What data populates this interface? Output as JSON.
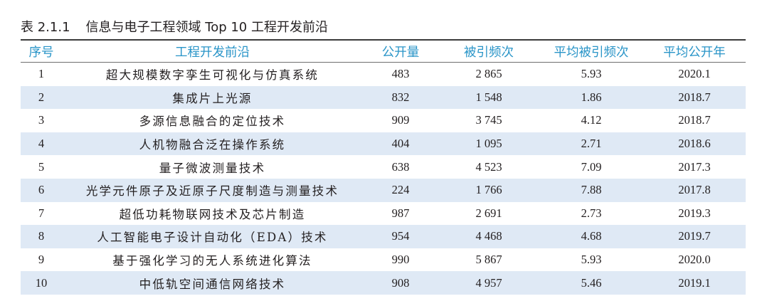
{
  "caption": {
    "number": "表 2.1.1",
    "title": "信息与电子工程领域 Top 10 工程开发前沿"
  },
  "table": {
    "headers": [
      "序号",
      "工程开发前沿",
      "公开量",
      "被引频次",
      "平均被引频次",
      "平均公开年"
    ],
    "rows": [
      [
        "1",
        "超大规模数字孪生可视化与仿真系统",
        "483",
        "2 865",
        "5.93",
        "2020.1"
      ],
      [
        "2",
        "集成片上光源",
        "832",
        "1 548",
        "1.86",
        "2018.7"
      ],
      [
        "3",
        "多源信息融合的定位技术",
        "909",
        "3 745",
        "4.12",
        "2018.7"
      ],
      [
        "4",
        "人机物融合泛在操作系统",
        "404",
        "1 095",
        "2.71",
        "2018.6"
      ],
      [
        "5",
        "量子微波测量技术",
        "638",
        "4 523",
        "7.09",
        "2017.3"
      ],
      [
        "6",
        "光学元件原子及近原子尺度制造与测量技术",
        "224",
        "1 766",
        "7.88",
        "2017.8"
      ],
      [
        "7",
        "超低功耗物联网技术及芯片制造",
        "987",
        "2 691",
        "2.73",
        "2019.3"
      ],
      [
        "8",
        "人工智能电子设计自动化（EDA）技术",
        "954",
        "4 468",
        "4.68",
        "2019.7"
      ],
      [
        "9",
        "基于强化学习的无人系统进化算法",
        "990",
        "5 867",
        "5.93",
        "2020.0"
      ],
      [
        "10",
        "中低轨空间通信网络技术",
        "908",
        "4 957",
        "5.46",
        "2019.1"
      ]
    ]
  },
  "colors": {
    "header_text": "#2a95c8",
    "row_shade": "#dfe9f5",
    "body_text": "#231f20"
  }
}
